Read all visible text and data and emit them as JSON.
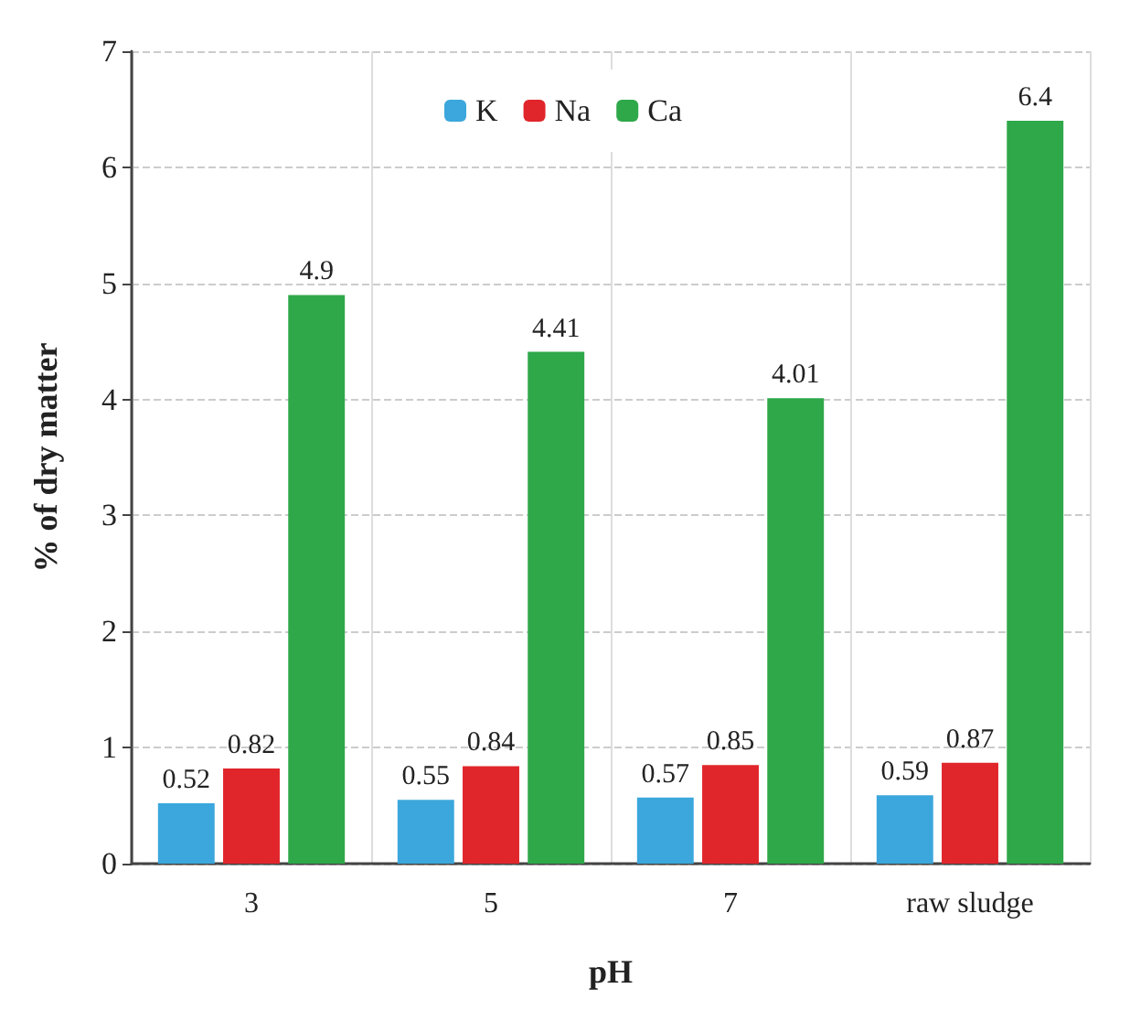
{
  "chart_data": {
    "type": "bar",
    "xlabel": "pH",
    "ylabel": "% of dry matter",
    "categories": [
      "3",
      "5",
      "7",
      "raw sludge"
    ],
    "series": [
      {
        "name": "K",
        "color": "#3ba7dc",
        "values": [
          0.52,
          0.55,
          0.57,
          0.59
        ]
      },
      {
        "name": "Na",
        "color": "#e0262b",
        "values": [
          0.82,
          0.84,
          0.85,
          0.87
        ]
      },
      {
        "name": "Ca",
        "color": "#2fa84a",
        "values": [
          4.9,
          4.41,
          4.01,
          6.4
        ]
      }
    ],
    "ylim": [
      0,
      7
    ],
    "yticks": [
      0,
      1,
      2,
      3,
      4,
      5,
      6,
      7
    ],
    "grid": true,
    "legend": "top",
    "data_labels": true
  }
}
